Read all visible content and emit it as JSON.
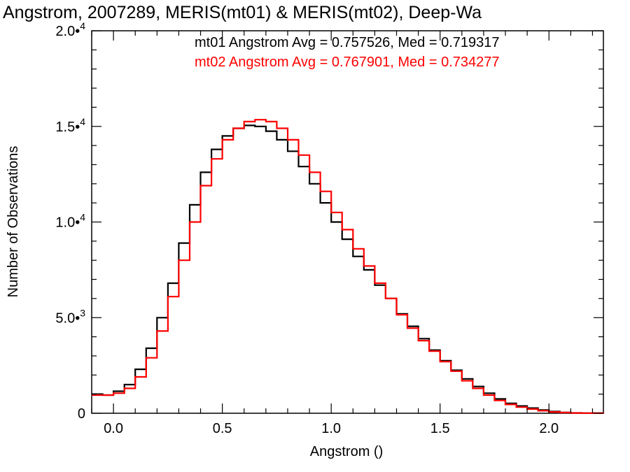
{
  "chart_data": {
    "type": "line",
    "step": true,
    "title": "Angstrom, 2007289, MERIS(mt01) & MERIS(mt02), Deep-Wa",
    "xlabel": "Angstrom ()",
    "ylabel": "Number of Observations",
    "xlim": [
      -0.1,
      2.25
    ],
    "ylim": [
      0,
      20000
    ],
    "x_ticks": [
      {
        "value": 0.0,
        "label": "0.0"
      },
      {
        "value": 0.5,
        "label": "0.5"
      },
      {
        "value": 1.0,
        "label": "1.0"
      },
      {
        "value": 1.5,
        "label": "1.5"
      },
      {
        "value": 2.0,
        "label": "2.0"
      }
    ],
    "y_ticks": [
      {
        "value": 0,
        "mantissa": "0",
        "exponent": ""
      },
      {
        "value": 5000,
        "mantissa": "5.0•",
        "exponent": "3"
      },
      {
        "value": 10000,
        "mantissa": "1.0•",
        "exponent": "4"
      },
      {
        "value": 15000,
        "mantissa": "1.5•",
        "exponent": "4"
      },
      {
        "value": 20000,
        "mantissa": "2.0•",
        "exponent": "4"
      }
    ],
    "x_minor_step": 0.1,
    "y_minor_step": 1000,
    "legend": [
      {
        "text": "mt01 Angstrom Avg = 0.757526, Med = 0.719317",
        "color": "#000000"
      },
      {
        "text": "mt02 Angstrom Avg = 0.767901, Med = 0.734277",
        "color": "#ff0000"
      }
    ],
    "series": [
      {
        "color": "#000000",
        "points": [
          [
            -0.1,
            1000
          ],
          [
            -0.05,
            950
          ],
          [
            0.0,
            1150
          ],
          [
            0.05,
            1500
          ],
          [
            0.1,
            2300
          ],
          [
            0.15,
            3400
          ],
          [
            0.2,
            5000
          ],
          [
            0.25,
            6800
          ],
          [
            0.3,
            8900
          ],
          [
            0.35,
            10900
          ],
          [
            0.4,
            12600
          ],
          [
            0.45,
            13800
          ],
          [
            0.5,
            14500
          ],
          [
            0.55,
            14900
          ],
          [
            0.6,
            15050
          ],
          [
            0.65,
            15000
          ],
          [
            0.7,
            14750
          ],
          [
            0.75,
            14300
          ],
          [
            0.8,
            13700
          ],
          [
            0.85,
            12900
          ],
          [
            0.9,
            12000
          ],
          [
            0.95,
            11000
          ],
          [
            1.0,
            10000
          ],
          [
            1.05,
            9100
          ],
          [
            1.1,
            8200
          ],
          [
            1.15,
            7500
          ],
          [
            1.2,
            6700
          ],
          [
            1.25,
            6000
          ],
          [
            1.3,
            5200
          ],
          [
            1.35,
            4550
          ],
          [
            1.4,
            3900
          ],
          [
            1.45,
            3300
          ],
          [
            1.5,
            2750
          ],
          [
            1.55,
            2250
          ],
          [
            1.6,
            1800
          ],
          [
            1.65,
            1400
          ],
          [
            1.7,
            1050
          ],
          [
            1.75,
            750
          ],
          [
            1.8,
            520
          ],
          [
            1.85,
            380
          ],
          [
            1.9,
            270
          ],
          [
            1.95,
            170
          ],
          [
            2.0,
            90
          ],
          [
            2.05,
            45
          ],
          [
            2.1,
            20
          ],
          [
            2.15,
            8
          ],
          [
            2.2,
            3
          ],
          [
            2.25,
            0
          ]
        ]
      },
      {
        "color": "#ff0000",
        "points": [
          [
            -0.1,
            950
          ],
          [
            -0.05,
            950
          ],
          [
            0.0,
            1050
          ],
          [
            0.05,
            1300
          ],
          [
            0.1,
            1900
          ],
          [
            0.15,
            2900
          ],
          [
            0.2,
            4300
          ],
          [
            0.25,
            6100
          ],
          [
            0.3,
            8000
          ],
          [
            0.35,
            10000
          ],
          [
            0.4,
            11900
          ],
          [
            0.45,
            13300
          ],
          [
            0.5,
            14300
          ],
          [
            0.55,
            14900
          ],
          [
            0.6,
            15250
          ],
          [
            0.65,
            15350
          ],
          [
            0.7,
            15250
          ],
          [
            0.75,
            14900
          ],
          [
            0.8,
            14300
          ],
          [
            0.85,
            13500
          ],
          [
            0.9,
            12600
          ],
          [
            0.95,
            11600
          ],
          [
            1.0,
            10500
          ],
          [
            1.05,
            9600
          ],
          [
            1.1,
            8600
          ],
          [
            1.15,
            7700
          ],
          [
            1.2,
            6800
          ],
          [
            1.25,
            6000
          ],
          [
            1.3,
            5150
          ],
          [
            1.35,
            4450
          ],
          [
            1.4,
            3800
          ],
          [
            1.45,
            3250
          ],
          [
            1.5,
            2700
          ],
          [
            1.55,
            2200
          ],
          [
            1.6,
            1700
          ],
          [
            1.65,
            1300
          ],
          [
            1.7,
            950
          ],
          [
            1.75,
            670
          ],
          [
            1.8,
            460
          ],
          [
            1.85,
            320
          ],
          [
            1.9,
            220
          ],
          [
            1.95,
            130
          ],
          [
            2.0,
            70
          ],
          [
            2.05,
            35
          ],
          [
            2.1,
            15
          ],
          [
            2.15,
            6
          ],
          [
            2.2,
            2
          ],
          [
            2.25,
            0
          ]
        ]
      }
    ]
  }
}
